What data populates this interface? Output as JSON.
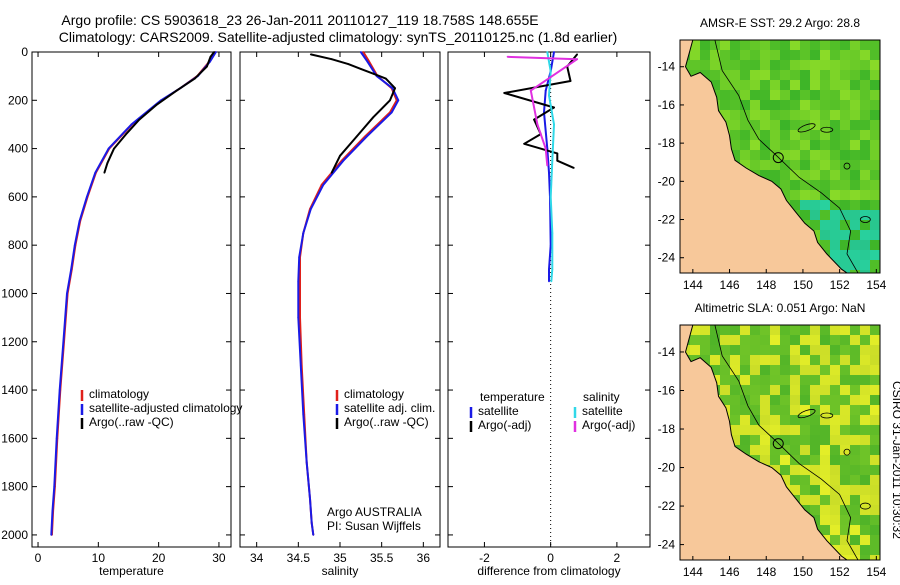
{
  "header": {
    "line1": "Argo profile: CS 5903618_23 26-Jan-2011 20110127_119 18.758S 148.655E",
    "line2": "Climatology: CARS2009. Satellite-adjusted climatology: synTS_20110125.nc (1.8d earlier)"
  },
  "side_label": "CSIRO 31-Jan-2011 10:30:32",
  "colors": {
    "climatology": "#e0201a",
    "satellite": "#1a1ae6",
    "argo": "#000000",
    "sal_satellite": "#30d8e8",
    "sal_argo": "#e030e0",
    "land": "#f7c89a",
    "coast": "#000000"
  },
  "chart_data": [
    {
      "type": "line",
      "panel": "temperature",
      "xlabel": "temperature",
      "ylabel": "",
      "xlim": [
        -1,
        32
      ],
      "ylim": [
        2050,
        0
      ],
      "xticks": [
        0,
        10,
        20,
        30
      ],
      "yticks": [
        0,
        200,
        400,
        600,
        800,
        1000,
        1200,
        1400,
        1600,
        1800,
        2000
      ],
      "legend": [
        "climatology",
        "satellite-adjusted climatology",
        "Argo(..raw -QC)"
      ],
      "legend_colors": [
        "#e0201a",
        "#1a1ae6",
        "#000000"
      ],
      "annotation": [],
      "series": [
        {
          "name": "climatology",
          "color": "#e0201a",
          "x": [
            29.4,
            28.4,
            26.4,
            23.6,
            20.5,
            15.6,
            11.8,
            9.6,
            8.2,
            7.0,
            6.2,
            5.6,
            4.9,
            4.3,
            3.7,
            3.2,
            2.8,
            2.5,
            2.3
          ],
          "y": [
            0,
            40,
            100,
            150,
            200,
            300,
            400,
            500,
            600,
            700,
            800,
            900,
            1000,
            1200,
            1400,
            1600,
            1800,
            1900,
            2000
          ]
        },
        {
          "name": "satellite-adjusted climatology",
          "color": "#1a1ae6",
          "x": [
            29.5,
            28.5,
            26.5,
            23.6,
            20.4,
            15.5,
            11.7,
            9.5,
            8.1,
            6.9,
            6.1,
            5.5,
            4.8,
            4.2,
            3.6,
            3.1,
            2.7,
            2.4,
            2.2
          ],
          "y": [
            0,
            40,
            100,
            150,
            200,
            300,
            400,
            500,
            600,
            700,
            800,
            900,
            1000,
            1200,
            1400,
            1600,
            1800,
            1900,
            2000
          ]
        },
        {
          "name": "Argo(..raw -QC)",
          "color": "#000000",
          "x": [
            29.2,
            28.6,
            28.0,
            26.0,
            23.0,
            19.6,
            16.8,
            14.6,
            12.6,
            11.5,
            11.0
          ],
          "y": [
            0,
            20,
            60,
            110,
            160,
            220,
            280,
            340,
            400,
            460,
            500
          ]
        }
      ]
    },
    {
      "type": "line",
      "panel": "salinity",
      "xlabel": "salinity",
      "ylabel": "",
      "xlim": [
        33.8,
        36.2
      ],
      "ylim": [
        2050,
        0
      ],
      "xticks": [
        34,
        34.5,
        35,
        35.5,
        36
      ],
      "yticks": [],
      "legend": [
        "climatology",
        "satellite adj. clim.",
        "Argo(..raw -QC)"
      ],
      "legend_colors": [
        "#e0201a",
        "#1a1ae6",
        "#000000"
      ],
      "annotation": [
        "Argo AUSTRALIA",
        "PI: Susan Wijffels"
      ],
      "series": [
        {
          "name": "climatology",
          "color": "#e0201a",
          "x": [
            35.28,
            35.35,
            35.45,
            35.62,
            35.68,
            35.6,
            35.3,
            35.02,
            34.78,
            34.64,
            34.56,
            34.52,
            34.52,
            34.52,
            34.54,
            34.57,
            34.6,
            34.64,
            34.66,
            34.68
          ],
          "y": [
            0,
            40,
            100,
            150,
            200,
            250,
            350,
            450,
            550,
            650,
            750,
            850,
            950,
            1100,
            1300,
            1500,
            1700,
            1850,
            1950,
            2000
          ]
        },
        {
          "name": "satellite adj. clim.",
          "color": "#1a1ae6",
          "x": [
            35.25,
            35.33,
            35.44,
            35.63,
            35.7,
            35.62,
            35.32,
            35.04,
            34.8,
            34.65,
            34.56,
            34.51,
            34.5,
            34.5,
            34.53,
            34.56,
            34.6,
            34.64,
            34.66,
            34.68
          ],
          "y": [
            0,
            40,
            100,
            150,
            200,
            250,
            350,
            450,
            550,
            650,
            750,
            850,
            950,
            1100,
            1300,
            1500,
            1700,
            1850,
            1950,
            2000
          ]
        },
        {
          "name": "Argo(..raw -QC)",
          "color": "#000000",
          "x": [
            34.65,
            34.9,
            35.1,
            35.25,
            35.4,
            35.55,
            35.66,
            35.6,
            35.4,
            35.2,
            35.0,
            34.9
          ],
          "y": [
            10,
            30,
            50,
            70,
            90,
            110,
            150,
            200,
            270,
            350,
            430,
            500
          ]
        }
      ]
    },
    {
      "type": "line",
      "panel": "difference",
      "xlabel": "difference from climatology",
      "ylabel": "",
      "xlim": [
        -3.1,
        3.0
      ],
      "ylim": [
        2050,
        0
      ],
      "xticks": [
        -2,
        0,
        2
      ],
      "yticks": [],
      "legend": [
        "temperature",
        "satellite",
        "Argo(-adj)",
        "salinity",
        "satellite",
        "Argo(-adj)"
      ],
      "legend_colors": [
        "#1a1ae6",
        "#1a1ae6",
        "#000000",
        "#30d8e8",
        "#30d8e8",
        "#e030e0"
      ],
      "annotation": [],
      "series": [
        {
          "name": "temperature satellite",
          "color": "#1a1ae6",
          "x": [
            0.1,
            0.0,
            -0.15,
            -0.2,
            -0.1,
            -0.05,
            -0.02,
            0.0,
            -0.05,
            -0.05
          ],
          "y": [
            0,
            80,
            160,
            250,
            400,
            500,
            600,
            800,
            900,
            950
          ]
        },
        {
          "name": "temperature Argo(-adj)",
          "color": "#000000",
          "x": [
            0.8,
            0.5,
            0.6,
            -1.4,
            0.1,
            -0.5,
            -0.3,
            -0.8,
            0.2,
            0.2,
            0.7
          ],
          "y": [
            10,
            60,
            120,
            170,
            230,
            280,
            340,
            380,
            420,
            450,
            480
          ]
        },
        {
          "name": "salinity satellite",
          "color": "#30d8e8",
          "x": [
            -0.1,
            0.0,
            -0.05,
            0.1,
            0.05,
            0.0,
            0.05,
            0.05,
            0.02
          ],
          "y": [
            0,
            80,
            180,
            300,
            450,
            600,
            750,
            900,
            950
          ]
        },
        {
          "name": "salinity Argo(-adj)",
          "color": "#e030e0",
          "x": [
            -1.3,
            0.8,
            -0.6,
            -0.4,
            -0.15,
            -0.1
          ],
          "y": [
            20,
            30,
            160,
            300,
            400,
            470
          ]
        }
      ]
    },
    {
      "type": "heatmap",
      "panel": "AMSR-E SST map",
      "title": "AMSR-E SST: 29.2 Argo: 28.8",
      "xlim": [
        143.3,
        154.2
      ],
      "ylim": [
        -24.8,
        -12.6
      ],
      "xticks": [
        144,
        146,
        148,
        150,
        152,
        154
      ],
      "yticks": [
        -14,
        -16,
        -18,
        -20,
        -22,
        -24
      ],
      "argo_position": {
        "lon": 148.655,
        "lat": -18.758
      }
    },
    {
      "type": "heatmap",
      "panel": "Altimetric SLA map",
      "title": "Altimetric SLA: 0.051 Argo: NaN",
      "xlim": [
        143.3,
        154.2
      ],
      "ylim": [
        -24.8,
        -12.6
      ],
      "xticks": [
        144,
        146,
        148,
        150,
        152,
        154
      ],
      "yticks": [
        -14,
        -16,
        -18,
        -20,
        -22,
        -24
      ],
      "argo_position": {
        "lon": 148.655,
        "lat": -18.758
      }
    }
  ]
}
